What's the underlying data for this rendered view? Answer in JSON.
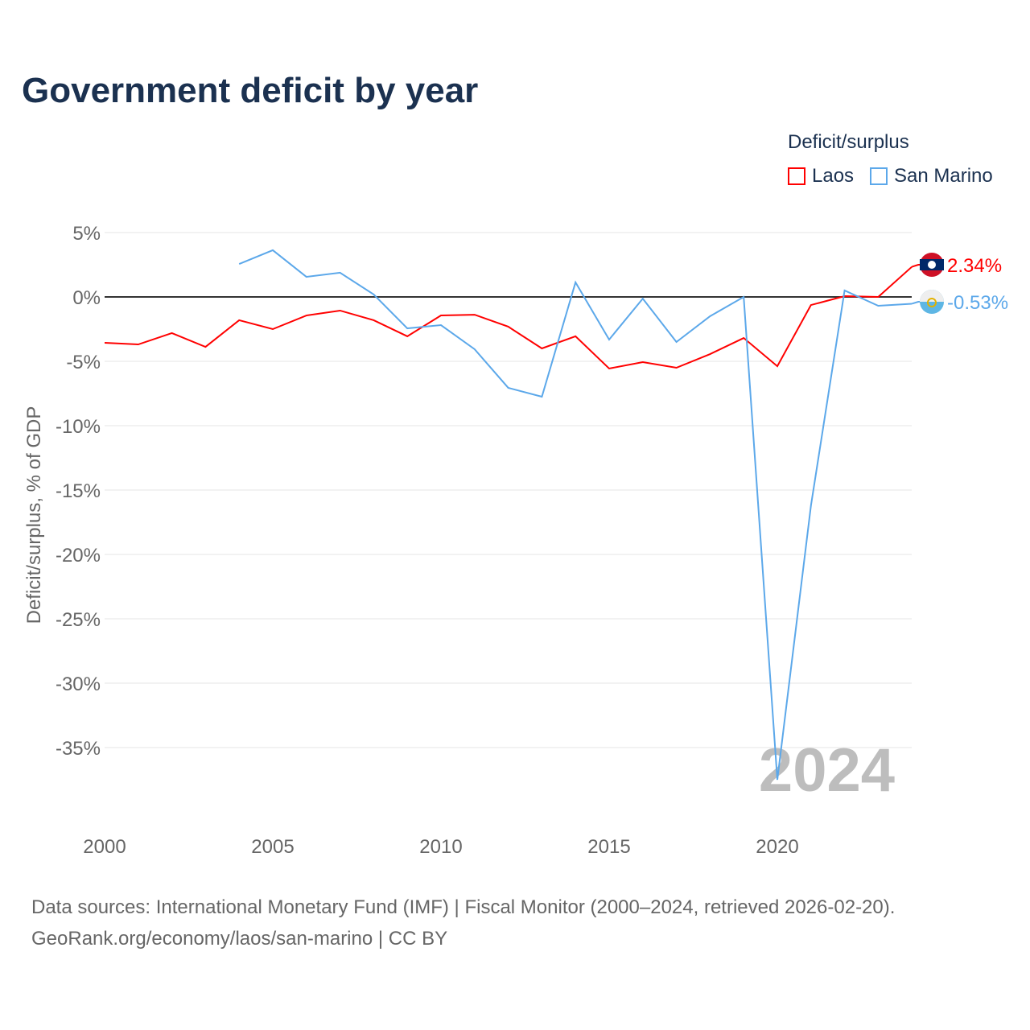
{
  "chart_data": {
    "type": "line",
    "title": "Government deficit by year",
    "ylabel": "Deficit/surplus, % of GDP",
    "xlabel": "",
    "xlim": [
      2000,
      2024
    ],
    "ylim": [
      -40,
      5
    ],
    "x_ticks": [
      2000,
      2005,
      2010,
      2015,
      2020
    ],
    "y_ticks": [
      5,
      0,
      -5,
      -10,
      -15,
      -20,
      -25,
      -30,
      -35
    ],
    "y_tick_labels": [
      "5%",
      "0%",
      "-5%",
      "-10%",
      "-15%",
      "-20%",
      "-25%",
      "-30%",
      "-35%"
    ],
    "legend_title": "Deficit/surplus",
    "legend_placement": "top-right",
    "watermark_year": "2024",
    "series": [
      {
        "name": "Laos",
        "color": "#ff0000",
        "end_label": "2.34%",
        "x": [
          2000,
          2001,
          2002,
          2003,
          2004,
          2005,
          2006,
          2007,
          2008,
          2009,
          2010,
          2011,
          2012,
          2013,
          2014,
          2015,
          2016,
          2017,
          2018,
          2019,
          2020,
          2021,
          2022,
          2023,
          2024
        ],
        "values": [
          -3.56,
          -3.69,
          -2.81,
          -3.88,
          -1.81,
          -2.5,
          -1.44,
          -1.06,
          -1.81,
          -3.06,
          -1.44,
          -1.38,
          -2.31,
          -4.0,
          -3.06,
          -5.56,
          -5.06,
          -5.5,
          -4.44,
          -3.19,
          -5.38,
          -0.63,
          0.06,
          0.0,
          2.34
        ]
      },
      {
        "name": "San Marino",
        "color": "#5ca8ea",
        "end_label": "-0.53%",
        "x": [
          2004,
          2005,
          2006,
          2007,
          2008,
          2009,
          2010,
          2011,
          2012,
          2013,
          2014,
          2015,
          2016,
          2017,
          2018,
          2019,
          2020,
          2021,
          2022,
          2023,
          2024
        ],
        "values": [
          2.56,
          3.63,
          1.56,
          1.88,
          0.19,
          -2.44,
          -2.19,
          -4.06,
          -7.06,
          -7.75,
          1.13,
          -3.31,
          -0.13,
          -3.5,
          -1.5,
          0.0,
          -37.5,
          -16.2,
          0.5,
          -0.69,
          -0.53
        ]
      }
    ]
  },
  "source": {
    "line1": "Data sources: International Monetary Fund (IMF) | Fiscal Monitor (2000–2024, retrieved 2026-02-20).",
    "line2": "GeoRank.org/economy/laos/san-marino | CC BY"
  }
}
